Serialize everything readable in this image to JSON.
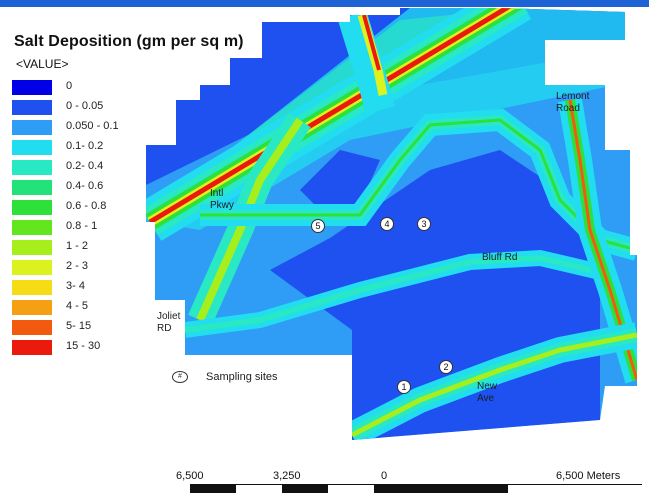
{
  "legend": {
    "title": "Salt Deposition (gm per sq m)",
    "subtitle": "<VALUE>",
    "items": [
      {
        "label": "0",
        "color": "#0000e6"
      },
      {
        "label": "0 - 0.05",
        "color": "#1f50f0"
      },
      {
        "label": "0.050 - 0.1",
        "color": "#2f9cf5"
      },
      {
        "label": "0.1- 0.2",
        "color": "#22dcf0"
      },
      {
        "label": "0.2- 0.4",
        "color": "#29e8c4"
      },
      {
        "label": "0.4- 0.6",
        "color": "#22e27a"
      },
      {
        "label": "0.6 - 0.8",
        "color": "#2ee03a"
      },
      {
        "label": "0.8 - 1",
        "color": "#62e61e"
      },
      {
        "label": "1 - 2",
        "color": "#a6ee1c"
      },
      {
        "label": "2 - 3",
        "color": "#dcf21e"
      },
      {
        "label": "3- 4",
        "color": "#f5dc14"
      },
      {
        "label": "4 - 5",
        "color": "#f5a014"
      },
      {
        "label": "5- 15",
        "color": "#f25a10"
      },
      {
        "label": "15 - 30",
        "color": "#ea1a0c"
      }
    ]
  },
  "map_labels": {
    "lemont": "Lemont\nRoad",
    "intl": "Intl\nPkwy",
    "bluff": "Bluff Rd",
    "joliet": "Joliet\nRD",
    "newave": "New\nAve"
  },
  "sites": [
    "1",
    "2",
    "3",
    "4",
    "5"
  ],
  "sites_key": {
    "icon": "#",
    "label": "Sampling sites"
  },
  "scale": {
    "labels": [
      "6,500",
      "3,250",
      "0",
      "6,500 Meters"
    ]
  }
}
